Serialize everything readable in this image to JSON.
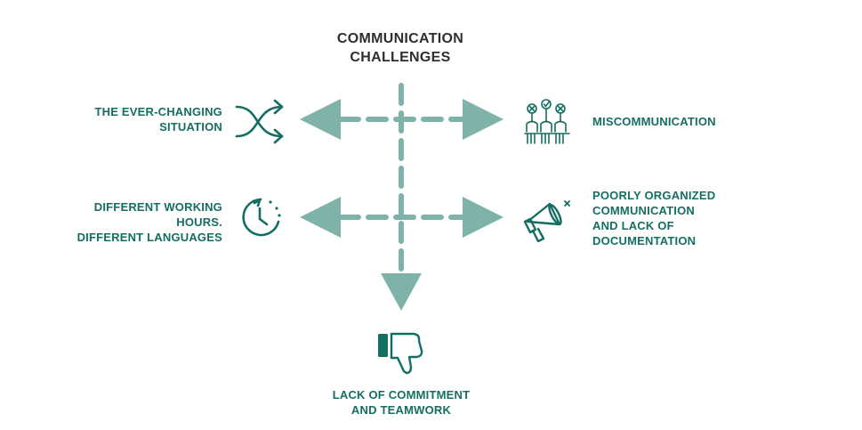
{
  "title": {
    "line1": "COMMUNICATION",
    "line2": "CHALLENGES"
  },
  "colors": {
    "arrow": "#7fb3aa",
    "accent": "#156e62",
    "title": "#2e2e2e"
  },
  "items": {
    "top_left": {
      "lines": [
        "THE EVER-CHANGING",
        "SITUATION"
      ],
      "icon": "shuffle-icon"
    },
    "top_right": {
      "lines": [
        "MISCOMMUNICATION"
      ],
      "icon": "voting-hands-icon"
    },
    "mid_left": {
      "lines": [
        "DIFFERENT WORKING",
        "HOURS.",
        "DIFFERENT LANGUAGES"
      ],
      "icon": "clock-icon"
    },
    "mid_right": {
      "lines": [
        "POORLY ORGANIZED",
        "COMMUNICATION",
        "AND LACK OF",
        "DOCUMENTATION"
      ],
      "icon": "megaphone-icon"
    },
    "bottom": {
      "lines": [
        "LACK OF COMMITMENT",
        "AND TEAMWORK"
      ],
      "icon": "thumbs-down-icon"
    }
  }
}
